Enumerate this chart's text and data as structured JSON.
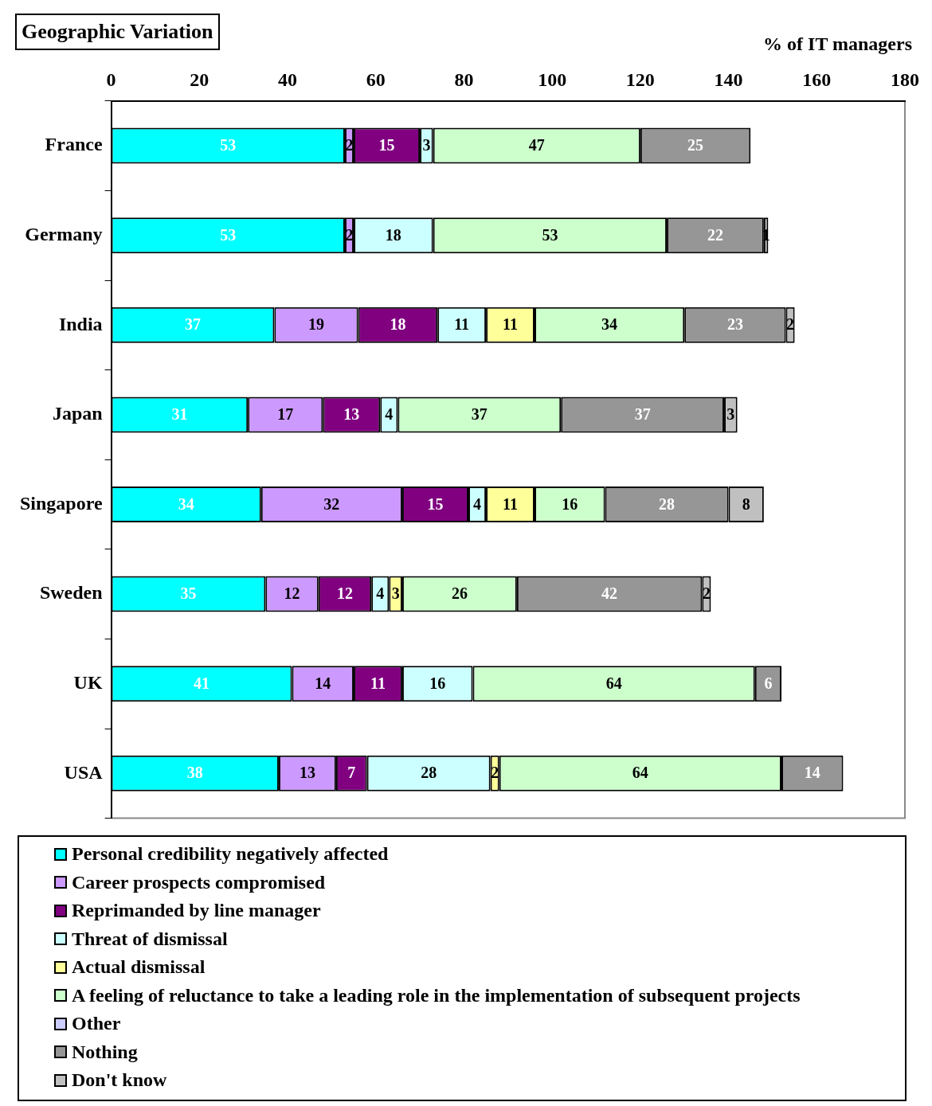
{
  "chart_data": {
    "type": "bar",
    "orientation": "horizontal",
    "stacked": true,
    "title": "Geographic Variation",
    "xlabel": "% of IT managers",
    "categories": [
      "France",
      "Germany",
      "India",
      "Japan",
      "Singapore",
      "Sweden",
      "UK",
      "USA"
    ],
    "series": [
      {
        "name": "Personal credibility negatively affected",
        "color": "#00ffff",
        "values": [
          53,
          53,
          37,
          31,
          34,
          35,
          41,
          38
        ]
      },
      {
        "name": "Career prospects compromised",
        "color": "#cc99ff",
        "values": [
          2,
          2,
          19,
          17,
          32,
          12,
          14,
          13
        ]
      },
      {
        "name": "Reprimanded by line manager",
        "color": "#800080",
        "values": [
          15,
          null,
          18,
          13,
          15,
          12,
          11,
          7
        ]
      },
      {
        "name": "Threat of dismissal",
        "color": "#ccffff",
        "values": [
          3,
          18,
          11,
          4,
          4,
          4,
          16,
          28
        ]
      },
      {
        "name": "Actual dismissal",
        "color": "#ffff99",
        "values": [
          null,
          null,
          11,
          null,
          11,
          3,
          null,
          2
        ]
      },
      {
        "name": "A feeling of reluctance to take a leading role in the implementation of subsequent projects",
        "color": "#ccffcc",
        "values": [
          47,
          53,
          34,
          37,
          16,
          26,
          64,
          64
        ]
      },
      {
        "name": "Other",
        "color": "#ccccff",
        "values": [
          null,
          null,
          null,
          null,
          null,
          null,
          null,
          null
        ]
      },
      {
        "name": "Nothing",
        "color": "#969696",
        "values": [
          25,
          22,
          23,
          37,
          28,
          42,
          6,
          14
        ]
      },
      {
        "name": "Don't know",
        "color": "#c0c0c0",
        "values": [
          null,
          1,
          2,
          3,
          8,
          2,
          null,
          null
        ]
      }
    ],
    "xlim": [
      0,
      180
    ],
    "xticks": [
      0,
      20,
      40,
      60,
      80,
      100,
      120,
      140,
      160,
      180
    ],
    "grid": false,
    "legend": "bottom",
    "data_labels": true
  }
}
